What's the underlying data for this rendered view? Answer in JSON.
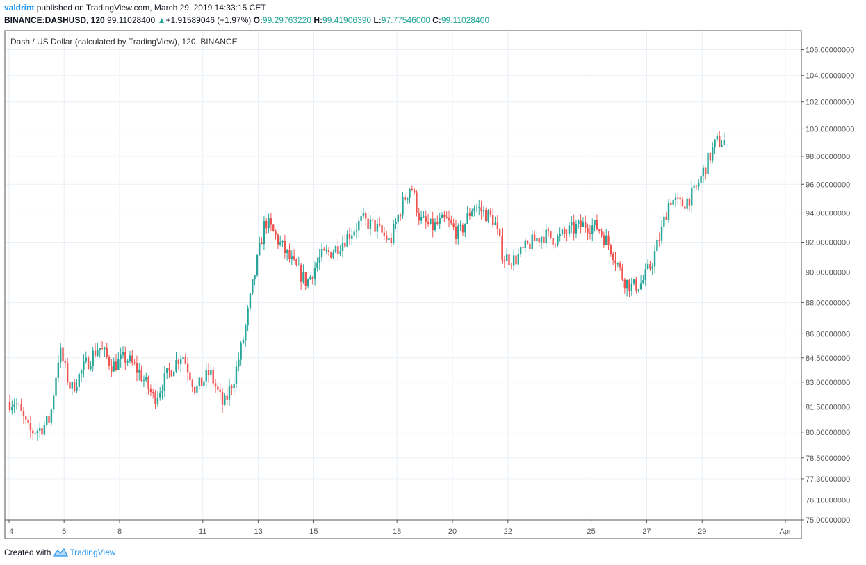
{
  "header": {
    "user": "valdrint",
    "published_text": "published on TradingView.com, March 29, 2019 14:33:15 CET",
    "symbol": "BINANCE:DASHUSD, 120",
    "last": "99.11028400",
    "change": "+1.91589046 (+1.97%)",
    "open_label": "O:",
    "open": "99.29763220",
    "high_label": "H:",
    "high": "99.41906390",
    "low_label": "L:",
    "low": "97.77546000",
    "close_label": "C:",
    "close": "99.11028400"
  },
  "footer": {
    "created_with": "Created with",
    "brand": "TradingView"
  },
  "colors": {
    "up": "#26a69a",
    "down": "#ef5350",
    "grid": "#e9eff5",
    "axis": "#555555"
  },
  "chart_data": {
    "type": "candlestick",
    "title": "Dash / US Dollar (calculated by TradingView), 120, BINANCE",
    "x_ticks": [
      "4",
      "6",
      "8",
      "11",
      "13",
      "15",
      "18",
      "20",
      "22",
      "25",
      "27",
      "29",
      "Apr"
    ],
    "y_ticks": [
      "106.00000000",
      "104.00000000",
      "102.00000000",
      "100.00000000",
      "98.00000000",
      "96.00000000",
      "94.00000000",
      "92.00000000",
      "90.00000000",
      "88.00000000",
      "86.00000000",
      "84.50000000",
      "83.00000000",
      "81.50000000",
      "80.00000000",
      "78.50000000",
      "77.30000000",
      "76.10000000",
      "75.00000000"
    ],
    "y_scale": "log",
    "ylim": [
      75,
      107.5
    ],
    "grid": true,
    "price_trend": [
      [
        "2019-03-04",
        81.8
      ],
      [
        "2019-03-04",
        80.0
      ],
      [
        "2019-03-05",
        80.2
      ],
      [
        "2019-03-05",
        80.8
      ],
      [
        "2019-03-05",
        85.0
      ],
      [
        "2019-03-06",
        82.5
      ],
      [
        "2019-03-06",
        84.0
      ],
      [
        "2019-03-07",
        85.2
      ],
      [
        "2019-03-07",
        84.0
      ],
      [
        "2019-03-08",
        84.5
      ],
      [
        "2019-03-08",
        83.5
      ],
      [
        "2019-03-09",
        82.0
      ],
      [
        "2019-03-09",
        83.5
      ],
      [
        "2019-03-10",
        84.8
      ],
      [
        "2019-03-10",
        82.5
      ],
      [
        "2019-03-11",
        83.6
      ],
      [
        "2019-03-11",
        81.5
      ],
      [
        "2019-03-12",
        83.5
      ],
      [
        "2019-03-12",
        86.0
      ],
      [
        "2019-03-12",
        89.5
      ],
      [
        "2019-03-13",
        93.5
      ],
      [
        "2019-03-13",
        92.0
      ],
      [
        "2019-03-14",
        90.5
      ],
      [
        "2019-03-14",
        89.3
      ],
      [
        "2019-03-15",
        91.0
      ],
      [
        "2019-03-15",
        91.5
      ],
      [
        "2019-03-16",
        92.5
      ],
      [
        "2019-03-16",
        93.5
      ],
      [
        "2019-03-17",
        93.0
      ],
      [
        "2019-03-17",
        92.0
      ],
      [
        "2019-03-18",
        94.5
      ],
      [
        "2019-03-18",
        96.0
      ],
      [
        "2019-03-18",
        93.5
      ],
      [
        "2019-03-19",
        93.0
      ],
      [
        "2019-03-19",
        93.5
      ],
      [
        "2019-03-20",
        92.5
      ],
      [
        "2019-03-20",
        94.5
      ],
      [
        "2019-03-21",
        94.0
      ],
      [
        "2019-03-21",
        93.5
      ],
      [
        "2019-03-21",
        91.0
      ],
      [
        "2019-03-22",
        90.8
      ],
      [
        "2019-03-22",
        91.8
      ],
      [
        "2019-03-23",
        92.5
      ],
      [
        "2019-03-23",
        92.2
      ],
      [
        "2019-03-24",
        92.8
      ],
      [
        "2019-03-24",
        93.2
      ],
      [
        "2019-03-25",
        93.0
      ],
      [
        "2019-03-25",
        91.5
      ],
      [
        "2019-03-26",
        89.5
      ],
      [
        "2019-03-26",
        89.0
      ],
      [
        "2019-03-26",
        89.3
      ],
      [
        "2019-03-27",
        90.5
      ],
      [
        "2019-03-27",
        92.5
      ],
      [
        "2019-03-27",
        95.0
      ],
      [
        "2019-03-28",
        94.5
      ],
      [
        "2019-03-28",
        95.5
      ],
      [
        "2019-03-29",
        97.5
      ],
      [
        "2019-03-29",
        99.0
      ],
      [
        "2019-03-29",
        99.11
      ]
    ]
  }
}
